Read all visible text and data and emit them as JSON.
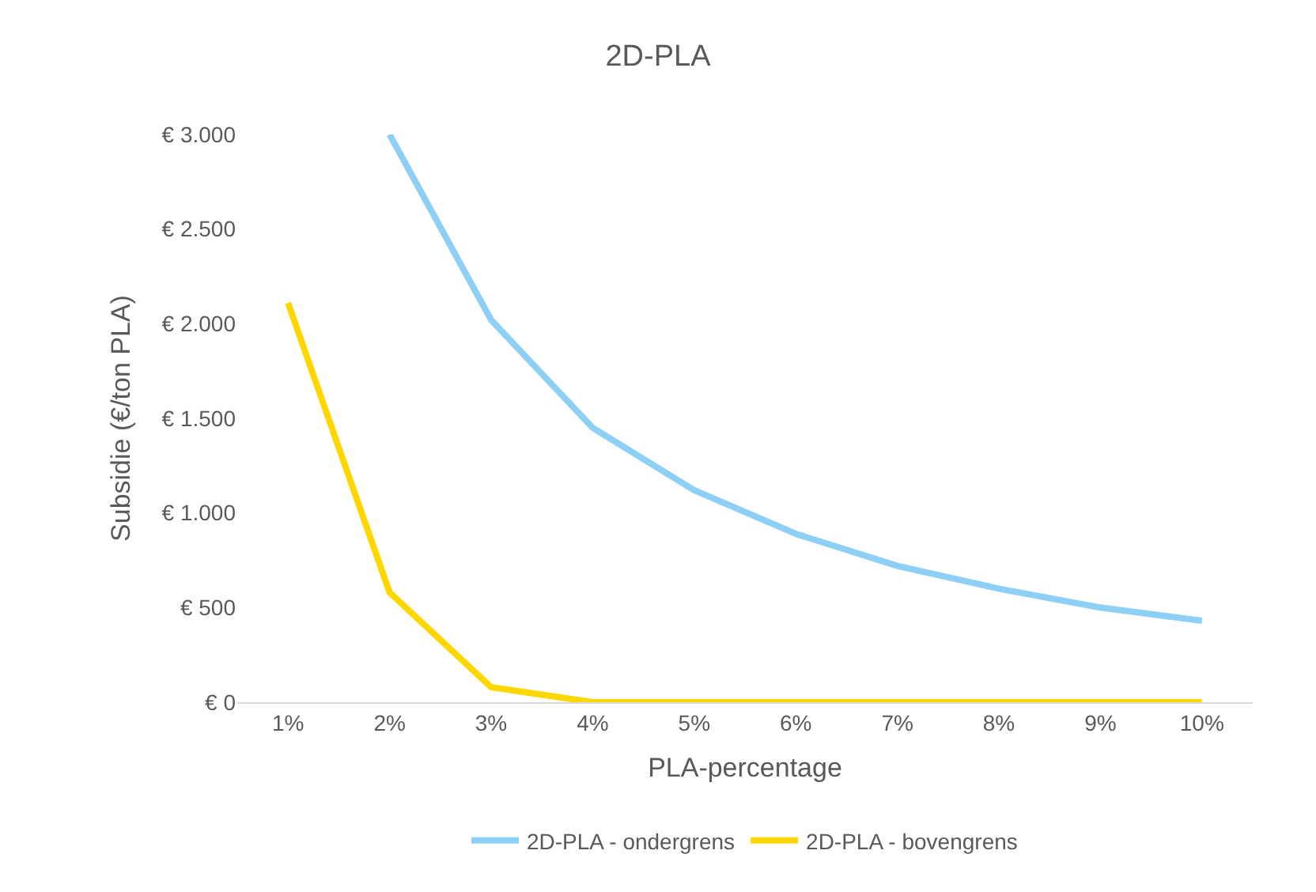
{
  "chart_data": {
    "type": "line",
    "title": "2D-PLA",
    "xlabel": "PLA-percentage",
    "ylabel": "Subsidie (€/ton PLA)",
    "categories": [
      "1%",
      "2%",
      "3%",
      "4%",
      "5%",
      "6%",
      "7%",
      "8%",
      "9%",
      "10%"
    ],
    "series": [
      {
        "name": "2D-PLA - ondergrens",
        "color": "#8ecff5",
        "values": [
          null,
          3000,
          2020,
          1450,
          1120,
          890,
          720,
          600,
          500,
          430
        ]
      },
      {
        "name": "2D-PLA - bovengrens",
        "color": "#ffd700",
        "values": [
          2110,
          580,
          80,
          0,
          0,
          0,
          0,
          0,
          0,
          0
        ]
      }
    ],
    "ylim": [
      0,
      3000
    ],
    "yticks": [
      {
        "value": 0,
        "label": "€ 0"
      },
      {
        "value": 500,
        "label": "€ 500"
      },
      {
        "value": 1000,
        "label": "€ 1.000"
      },
      {
        "value": 1500,
        "label": "€ 1.500"
      },
      {
        "value": 2000,
        "label": "€ 2.000"
      },
      {
        "value": 2500,
        "label": "€ 2.500"
      },
      {
        "value": 3000,
        "label": "€ 3.000"
      }
    ],
    "legend": "bottom",
    "line_style": "solid",
    "marker": "none"
  }
}
